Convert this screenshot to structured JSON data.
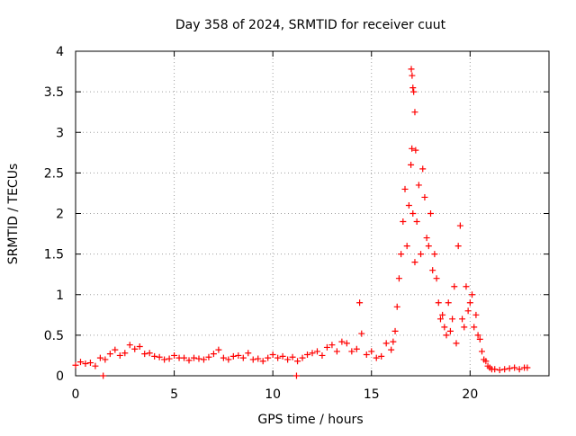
{
  "chart_data": {
    "type": "scatter",
    "title": "Day 358 of 2024, SRMTID for receiver cuut",
    "xlabel": "GPS time / hours",
    "ylabel": "SRMTID / TECUs",
    "xlim": [
      0,
      24
    ],
    "ylim": [
      0,
      4
    ],
    "xticks": [
      0,
      5,
      10,
      15,
      20
    ],
    "xtick_labels": [
      "0",
      "5",
      "10",
      "15",
      "20"
    ],
    "yticks": [
      0,
      0.5,
      1,
      1.5,
      2,
      2.5,
      3,
      3.5,
      4
    ],
    "ytick_labels": [
      "0",
      "0.5",
      "1",
      "1.5",
      "2",
      "2.5",
      "3",
      "3.5",
      "4"
    ],
    "grid": true,
    "legend": "none",
    "marker": "plus",
    "color": "#ff0000",
    "series": [
      {
        "name": "SRMTID",
        "x": [
          0.0,
          0.25,
          0.5,
          0.75,
          1.0,
          1.25,
          1.5,
          1.75,
          2.0,
          2.25,
          2.5,
          2.75,
          3.0,
          3.25,
          3.5,
          3.75,
          4.0,
          4.25,
          4.5,
          4.75,
          5.0,
          5.25,
          5.5,
          5.75,
          6.0,
          6.25,
          6.5,
          6.75,
          7.0,
          7.25,
          7.5,
          7.75,
          8.0,
          8.25,
          8.5,
          8.75,
          9.0,
          9.25,
          9.5,
          9.75,
          10.0,
          10.25,
          10.5,
          10.75,
          11.0,
          11.25,
          11.5,
          11.75,
          12.0,
          12.25,
          12.5,
          12.75,
          13.0,
          13.25,
          13.5,
          13.75,
          14.0,
          14.25,
          14.5,
          14.75,
          15.0,
          15.25,
          15.5,
          15.75,
          16.0,
          16.1,
          16.2,
          16.3,
          16.4,
          16.5,
          16.6,
          16.7,
          16.8,
          16.9,
          17.0,
          17.05,
          17.1,
          17.2,
          17.3,
          17.4,
          17.5,
          17.6,
          17.7,
          17.8,
          17.9,
          18.0,
          18.1,
          18.2,
          18.3,
          18.4,
          18.5,
          18.6,
          18.7,
          18.8,
          18.9,
          19.0,
          19.1,
          19.2,
          19.3,
          19.4,
          19.5,
          19.6,
          19.7,
          19.8,
          19.9,
          20.0,
          20.1,
          20.2,
          20.3,
          20.4,
          20.5,
          20.6,
          20.7,
          20.8,
          20.9,
          21.0,
          21.1,
          21.25,
          21.5,
          21.75,
          22.0,
          22.25,
          22.5,
          22.75,
          22.9,
          14.4,
          1.4,
          11.2,
          17.02,
          17.06,
          17.1,
          17.14,
          17.2,
          17.24
        ],
        "y": [
          0.13,
          0.17,
          0.15,
          0.16,
          0.12,
          0.22,
          0.2,
          0.27,
          0.32,
          0.25,
          0.28,
          0.38,
          0.33,
          0.36,
          0.27,
          0.28,
          0.24,
          0.23,
          0.2,
          0.21,
          0.25,
          0.22,
          0.22,
          0.19,
          0.22,
          0.21,
          0.2,
          0.23,
          0.27,
          0.32,
          0.22,
          0.2,
          0.24,
          0.25,
          0.22,
          0.28,
          0.2,
          0.21,
          0.18,
          0.22,
          0.26,
          0.22,
          0.24,
          0.2,
          0.23,
          0.18,
          0.22,
          0.26,
          0.28,
          0.3,
          0.25,
          0.35,
          0.38,
          0.3,
          0.42,
          0.4,
          0.3,
          0.33,
          0.52,
          0.26,
          0.3,
          0.22,
          0.24,
          0.4,
          0.32,
          0.42,
          0.55,
          0.85,
          1.2,
          1.5,
          1.9,
          2.3,
          1.6,
          2.1,
          2.6,
          2.8,
          2.0,
          1.4,
          1.9,
          2.35,
          1.5,
          2.55,
          2.2,
          1.7,
          1.6,
          2.0,
          1.3,
          1.5,
          1.2,
          0.9,
          0.7,
          0.75,
          0.6,
          0.5,
          0.9,
          0.55,
          0.7,
          1.1,
          0.4,
          1.6,
          1.85,
          0.7,
          0.6,
          1.1,
          0.8,
          0.9,
          1.0,
          0.6,
          0.75,
          0.5,
          0.45,
          0.3,
          0.2,
          0.18,
          0.12,
          0.1,
          0.08,
          0.08,
          0.07,
          0.08,
          0.09,
          0.1,
          0.08,
          0.1,
          0.1,
          0.9,
          0.0,
          0.0,
          3.78,
          3.7,
          3.55,
          3.5,
          3.25,
          2.78
        ]
      }
    ]
  }
}
